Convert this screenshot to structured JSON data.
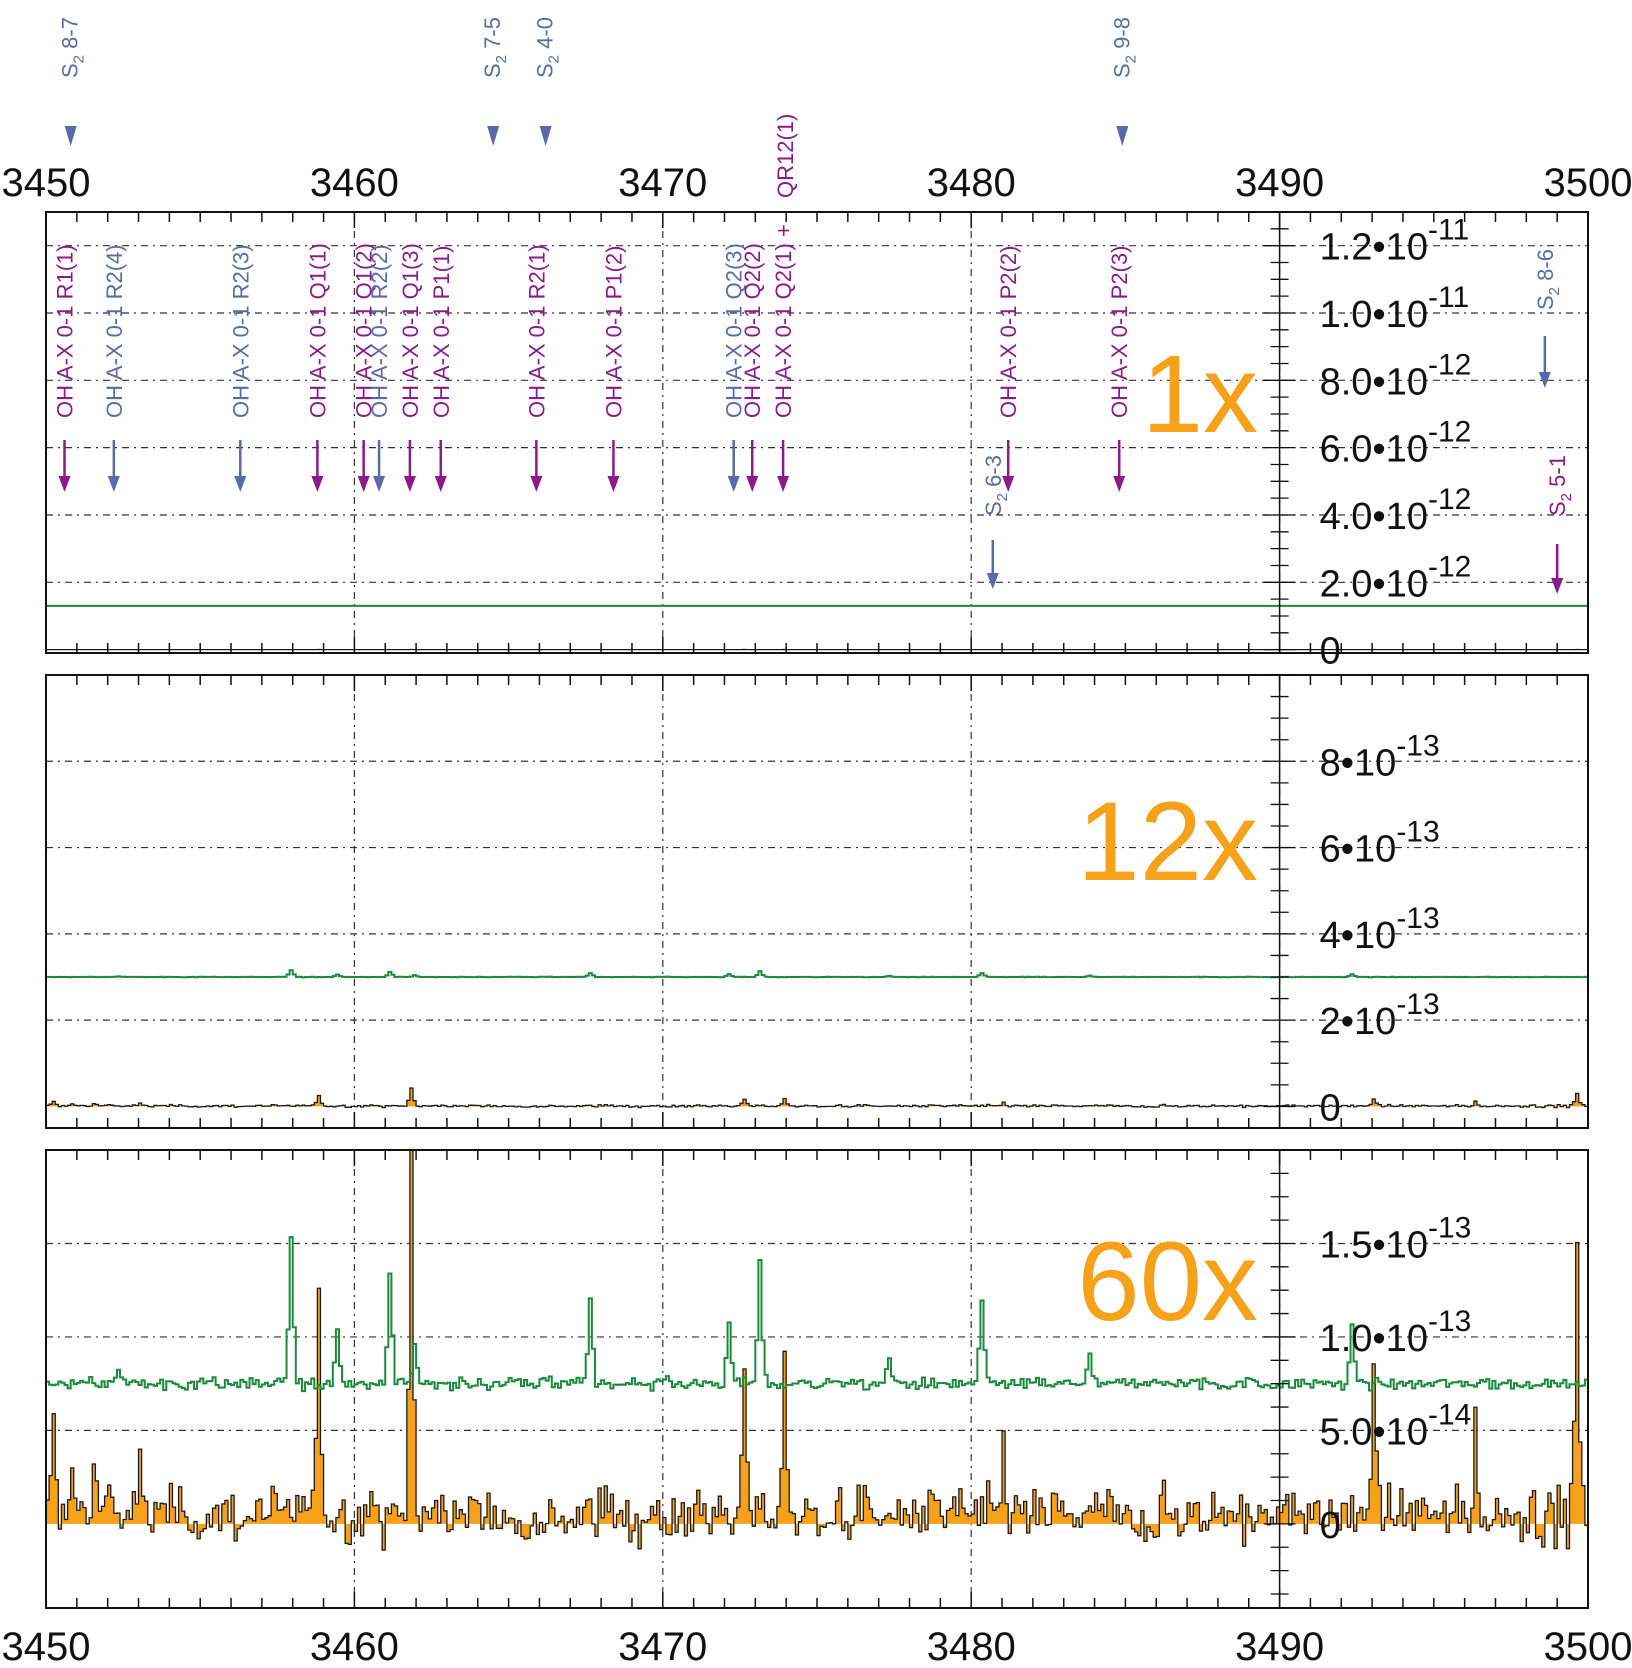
{
  "chart_data": {
    "type": "line",
    "x_ticks": [
      3450,
      3460,
      3470,
      3480,
      3490,
      3500
    ],
    "x_tick_labels": [
      "3450",
      "3460",
      "3470",
      "3480",
      "3490",
      "3500"
    ],
    "xlim": [
      3450,
      3500
    ],
    "colors": {
      "spectrum_fill": "#f7a11a",
      "spectrum_line": "#1a1a1a",
      "model_line": "#1a8a3c",
      "oh_label": "#8b1a8b",
      "s2_label": "#5a6aa8",
      "scale_label": "#f7a11a",
      "grid": "#333333"
    },
    "top_labels": [
      {
        "species": "S",
        "sub": "2",
        "band": " 8-7",
        "x": 3450.8
      },
      {
        "species": "S",
        "sub": "2",
        "band": " 7-5",
        "x": 3464.5
      },
      {
        "species": "S",
        "sub": "2",
        "band": " 4-0",
        "x": 3466.2
      },
      {
        "species": "S",
        "sub": "2",
        "band": " 9-8",
        "x": 3484.9
      }
    ],
    "top_extra": {
      "label": "QR12(1)",
      "x": 3474.0
    },
    "line_labels": [
      {
        "text": "OH A-X 0-1 R1(1)",
        "x": 3450.6,
        "group": "oh"
      },
      {
        "text": "OH A-X 0-1 R2(4)",
        "x": 3452.2,
        "group": "s2"
      },
      {
        "text": "OH A-X 0-1 R2(3)",
        "x": 3456.3,
        "group": "s2"
      },
      {
        "text": "OH A-X 0-1 Q1(1)",
        "x": 3458.8,
        "group": "oh"
      },
      {
        "text": "OH A-X 0-1 Q1(2)",
        "x": 3460.3,
        "group": "oh"
      },
      {
        "text": "OH A-X 0-1 R2(2)",
        "x": 3460.8,
        "group": "s2"
      },
      {
        "text": "OH A-X 0-1 Q1(3)",
        "x": 3461.8,
        "group": "oh"
      },
      {
        "text": "OH A-X 0-1 P1(1)",
        "x": 3462.8,
        "group": "oh"
      },
      {
        "text": "OH A-X 0-1 R2(1)",
        "x": 3465.9,
        "group": "oh"
      },
      {
        "text": "OH A-X 0-1 P1(2)",
        "x": 3468.4,
        "group": "oh"
      },
      {
        "text": "OH A-X 0-1 Q2(3)",
        "x": 3472.3,
        "group": "s2"
      },
      {
        "text": "OH A-X 0-1 Q2(2)",
        "x": 3472.9,
        "group": "oh"
      },
      {
        "text": "OH A-X 0-1 Q2(1) +",
        "x": 3473.9,
        "group": "oh"
      },
      {
        "text": "OH A-X 0-1 P2(2)",
        "x": 3481.2,
        "group": "oh"
      },
      {
        "text": "OH A-X 0-1 P2(3)",
        "x": 3484.8,
        "group": "oh"
      }
    ],
    "band_heads": [
      {
        "species": "S",
        "sub": "2",
        "band": " 6-3",
        "x": 3480.7,
        "group": "s2"
      },
      {
        "species": "S",
        "sub": "2",
        "band": " 8-6",
        "x": 3498.6,
        "group": "s2"
      },
      {
        "species": "S",
        "sub": "2",
        "band": " 5-1",
        "x": 3499.0,
        "group": "oh"
      }
    ],
    "panels": [
      {
        "scale_label": "1x",
        "ylim": [
          -1e-13,
          1.3e-11
        ],
        "y_ticks": [
          0,
          2e-12,
          4e-12,
          6e-12,
          8e-12,
          1e-11,
          1.2e-11
        ],
        "y_tick_labels": [
          {
            "base": "0",
            "exp": ""
          },
          {
            "base": "2.0•10",
            "exp": "-12"
          },
          {
            "base": "4.0•10",
            "exp": "-12"
          },
          {
            "base": "6.0•10",
            "exp": "-12"
          },
          {
            "base": "8.0•10",
            "exp": "-12"
          },
          {
            "base": "1.0•10",
            "exp": "-11"
          },
          {
            "base": "1.2•10",
            "exp": "-11"
          }
        ],
        "model_offset": 1.3e-12,
        "scale_factor": 1
      },
      {
        "scale_label": "12x",
        "ylim": [
          -5e-14,
          1e-12
        ],
        "y_ticks": [
          0,
          2e-13,
          4e-13,
          6e-13,
          8e-13
        ],
        "y_tick_labels": [
          {
            "base": "0",
            "exp": ""
          },
          {
            "base": "2•10",
            "exp": "-13"
          },
          {
            "base": "4•10",
            "exp": "-13"
          },
          {
            "base": "6•10",
            "exp": "-13"
          },
          {
            "base": "8•10",
            "exp": "-13"
          }
        ],
        "model_offset": 3e-13,
        "scale_factor": 12
      },
      {
        "scale_label": "60x",
        "ylim": [
          -4.5e-14,
          2e-13
        ],
        "y_ticks": [
          0,
          5e-14,
          1e-13,
          1.5e-13
        ],
        "y_tick_labels": [
          {
            "base": "0",
            "exp": ""
          },
          {
            "base": "5.0•10",
            "exp": "-14"
          },
          {
            "base": "1.0•10",
            "exp": "-13"
          },
          {
            "base": "1.5•10",
            "exp": "-13"
          }
        ],
        "model_offset": 7.5e-14,
        "scale_factor": 60
      }
    ],
    "observed_peaks": [
      {
        "x": 3450.2,
        "amp": 4.5e-14
      },
      {
        "x": 3450.8,
        "amp": 3.5e-14
      },
      {
        "x": 3451.5,
        "amp": 3e-14
      },
      {
        "x": 3452.0,
        "amp": 3.5e-14
      },
      {
        "x": 3453.0,
        "amp": 2.5e-14
      },
      {
        "x": 3458.8,
        "amp": 1.25e-13
      },
      {
        "x": 3461.8,
        "amp": 2.1e-13
      },
      {
        "x": 3472.6,
        "amp": 8e-14
      },
      {
        "x": 3473.9,
        "amp": 7.5e-14
      },
      {
        "x": 3481.0,
        "amp": 4e-14
      },
      {
        "x": 3493.0,
        "amp": 9e-14
      },
      {
        "x": 3496.3,
        "amp": 5e-14
      },
      {
        "x": 3499.6,
        "amp": 1.4e-13
      }
    ],
    "model_peaks": [
      {
        "x": 3452.3,
        "amp": 8e-15
      },
      {
        "x": 3457.9,
        "amp": 8e-14
      },
      {
        "x": 3459.4,
        "amp": 3e-14
      },
      {
        "x": 3461.1,
        "amp": 6e-14
      },
      {
        "x": 3461.9,
        "amp": 2e-14
      },
      {
        "x": 3467.6,
        "amp": 4.5e-14
      },
      {
        "x": 3472.1,
        "amp": 3.5e-14
      },
      {
        "x": 3473.1,
        "amp": 6.5e-14
      },
      {
        "x": 3477.3,
        "amp": 1.2e-14
      },
      {
        "x": 3480.3,
        "amp": 4.5e-14
      },
      {
        "x": 3483.8,
        "amp": 1.5e-14
      },
      {
        "x": 3492.3,
        "amp": 3e-14
      }
    ]
  }
}
